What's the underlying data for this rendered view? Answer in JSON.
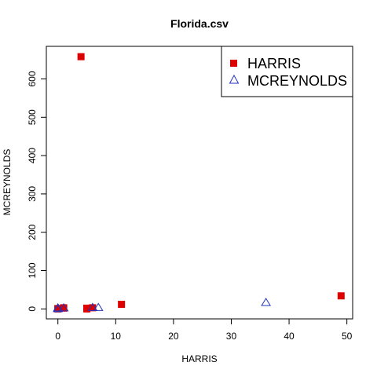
{
  "chart_data": {
    "type": "scatter",
    "title": "Florida.csv",
    "xlabel": "HARRIS",
    "ylabel": "MCREYNOLDS",
    "xlim": [
      -2,
      51
    ],
    "ylim": [
      -26,
      685
    ],
    "x_ticks": [
      0,
      10,
      20,
      30,
      40,
      50
    ],
    "x_tick_labels": [
      "0",
      "10",
      "20",
      "30",
      "40",
      "50"
    ],
    "y_ticks": [
      0,
      100,
      200,
      300,
      400,
      500,
      600
    ],
    "y_tick_labels": [
      "0",
      "100",
      "200",
      "300",
      "400",
      "500",
      "600"
    ],
    "grid": false,
    "legend_position": "top-right",
    "series": [
      {
        "name": "HARRIS",
        "marker": "filled-square",
        "color": "#dd0000",
        "points": [
          {
            "x": 0,
            "y": 0
          },
          {
            "x": 0,
            "y": 1
          },
          {
            "x": 1,
            "y": 2
          },
          {
            "x": 1,
            "y": 3
          },
          {
            "x": 4,
            "y": 658
          },
          {
            "x": 5,
            "y": 0
          },
          {
            "x": 5,
            "y": 2
          },
          {
            "x": 6,
            "y": 3
          },
          {
            "x": 11,
            "y": 12
          },
          {
            "x": 49,
            "y": 34
          }
        ]
      },
      {
        "name": "MCREYNOLDS",
        "marker": "open-triangle",
        "color": "#2233bb",
        "points": [
          {
            "x": 0,
            "y": 1
          },
          {
            "x": 0,
            "y": 3
          },
          {
            "x": 1,
            "y": 3
          },
          {
            "x": 6,
            "y": 4
          },
          {
            "x": 7,
            "y": 4
          },
          {
            "x": 36,
            "y": 17
          }
        ]
      }
    ]
  }
}
